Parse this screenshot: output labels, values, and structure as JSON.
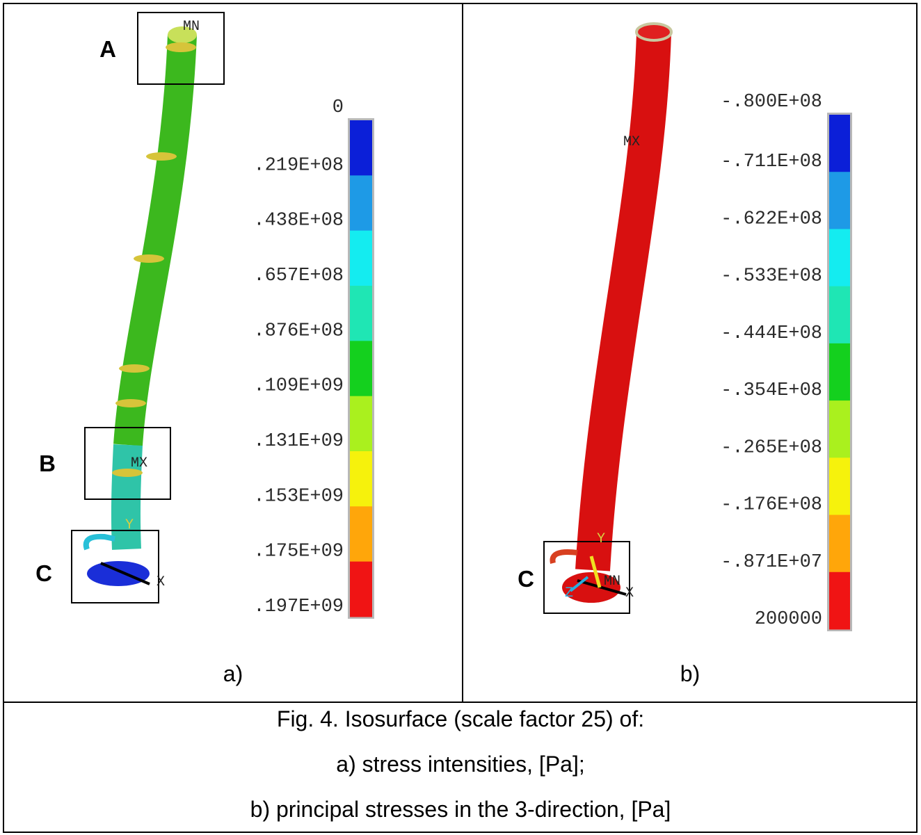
{
  "figure": {
    "panels": [
      {
        "label": "a)",
        "markers": {
          "box_a": "A",
          "box_b": "B",
          "box_c": "C",
          "min": "MN",
          "max": "MX",
          "axis_x": "X",
          "axis_y": "Y"
        },
        "legend": {
          "labels": [
            "0",
            ".219E+08",
            ".438E+08",
            ".657E+08",
            ".876E+08",
            ".109E+09",
            ".131E+09",
            ".153E+09",
            ".175E+09",
            ".197E+09"
          ],
          "colors": [
            "#0b1fd8",
            "#1e9ae6",
            "#14ecf0",
            "#1fe6b4",
            "#14d01e",
            "#aaf01e",
            "#f6f20c",
            "#ffa60a",
            "#f01414"
          ]
        }
      },
      {
        "label": "b)",
        "markers": {
          "box_c": "C",
          "min": "MN",
          "max": "MX",
          "axis_x": "X",
          "axis_y": "Y",
          "axis_z": "Z"
        },
        "legend": {
          "labels": [
            "-.800E+08",
            "-.711E+08",
            "-.622E+08",
            "-.533E+08",
            "-.444E+08",
            "-.354E+08",
            "-.265E+08",
            "-.176E+08",
            "-.871E+07",
            "200000"
          ],
          "colors": [
            "#0b1fd8",
            "#1e9ae6",
            "#14ecf0",
            "#1fe6b4",
            "#14d01e",
            "#aaf01e",
            "#f6f20c",
            "#ffa60a",
            "#f01414"
          ]
        }
      }
    ],
    "caption": [
      "Fig. 4. Isosurface (scale factor 25) of:",
      "a) stress intensities, [Pa];",
      "b) principal stresses in the 3-direction, [Pa]"
    ]
  }
}
